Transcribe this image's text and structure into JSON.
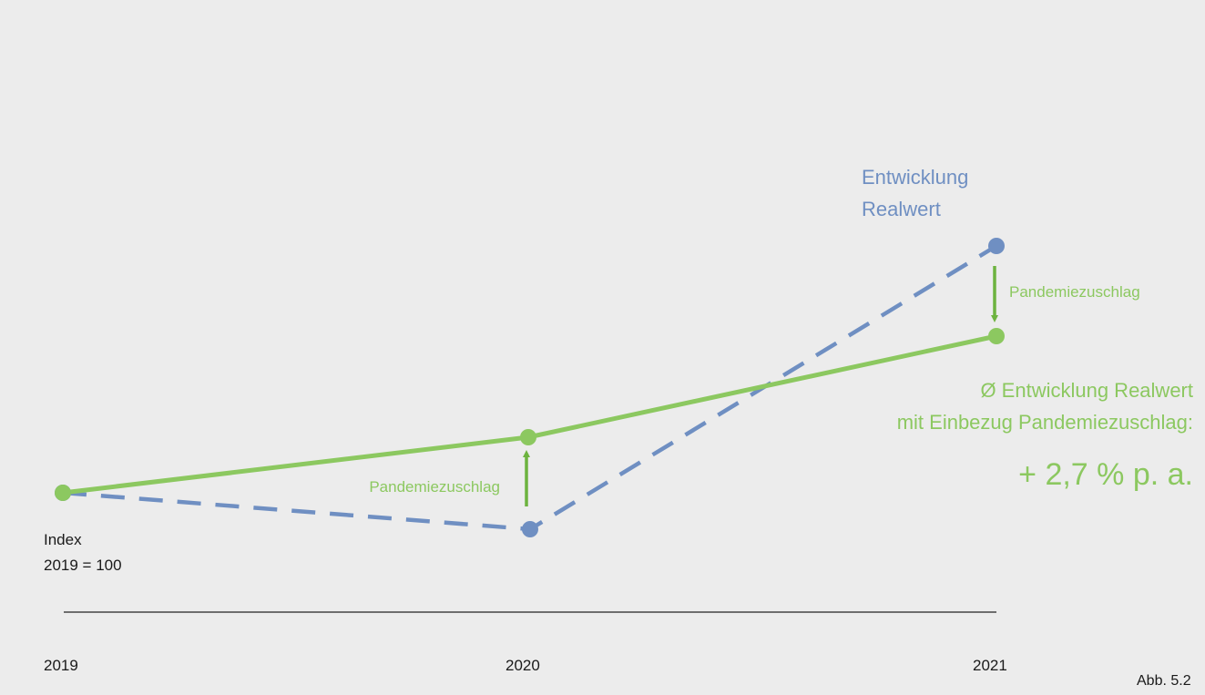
{
  "colors": {
    "background": "#ececec",
    "green": "#8cc860",
    "green_arrow": "#6db33f",
    "blue": "#6f8fc2",
    "axis": "#222222",
    "text": "#1a1a1a"
  },
  "figure_label": "Abb. 5.2",
  "chart_data": {
    "type": "line",
    "x": [
      "2019",
      "2020",
      "2021"
    ],
    "series": [
      {
        "name": "Ø Entwicklung Realwert mit Einbezug Pandemiezuschlag:",
        "color": "#8cc860",
        "style": "solid"
      },
      {
        "name": "Entwicklung Realwert",
        "color": "#6f8fc2",
        "style": "dashed"
      }
    ],
    "index_label": [
      "Index",
      "2019 = 100"
    ],
    "series_labels": {
      "realwert": [
        "Entwicklung",
        "Realwert"
      ],
      "average": [
        "Ø Entwicklung Realwert",
        "mit Einbezug Pandemiezuschlag:"
      ]
    },
    "growth_rate": "+ 2,7 % p. a.",
    "annotations": [
      {
        "text": "Pandemiezuschlag",
        "at": "2020",
        "direction": "up"
      },
      {
        "text": "Pandemiezuschlag",
        "at": "2021",
        "direction": "down"
      }
    ],
    "legend": "none",
    "grid": false
  }
}
